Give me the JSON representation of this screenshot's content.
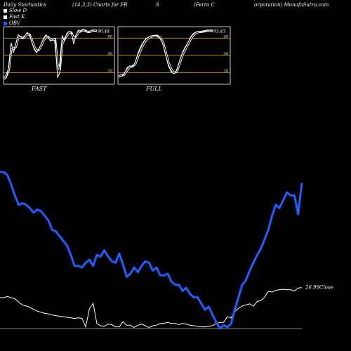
{
  "header": {
    "title": "Daily Stochastics",
    "params": "(14,3,3) Charts for FR",
    "ticker_fragment": "S",
    "company": "(Ferro  C",
    "source": "orporation) MunafaSutra.com"
  },
  "legend": [
    {
      "label": "Slow  D",
      "color": "#ffffff"
    },
    {
      "label": "Fast K",
      "color": "#ffffff"
    },
    {
      "label": "OBV",
      "color": "#1f5fff"
    }
  ],
  "colors": {
    "obv": "#1f5fff",
    "price": "#ffffff",
    "band": "#b8860b",
    "panel_border": "#cccccc"
  },
  "chart_data": [
    {
      "type": "line",
      "title": "FAST",
      "ylim": [
        0,
        100
      ],
      "yticks": [
        20,
        50,
        80
      ],
      "value_label": "90.44",
      "series": [
        {
          "name": "Fast K",
          "values": [
            8,
            12,
            30,
            72,
            55,
            70,
            86,
            83,
            79,
            85,
            90,
            86,
            72,
            60,
            55,
            62,
            70,
            80,
            86,
            82,
            75,
            78,
            80,
            12,
            20,
            85,
            76,
            88,
            92,
            90,
            70,
            85,
            94,
            92,
            95,
            93,
            90,
            92,
            94,
            92,
            93
          ]
        },
        {
          "name": "Slow  D",
          "values": [
            10,
            15,
            25,
            60,
            62,
            65,
            80,
            82,
            80,
            83,
            87,
            86,
            76,
            65,
            58,
            60,
            67,
            76,
            82,
            82,
            78,
            77,
            78,
            35,
            25,
            70,
            78,
            84,
            90,
            90,
            80,
            83,
            90,
            92,
            94,
            93,
            91,
            91,
            93,
            93,
            93
          ]
        }
      ]
    },
    {
      "type": "line",
      "title": "FULL",
      "ylim": [
        0,
        100
      ],
      "yticks": [
        20,
        50,
        80
      ],
      "value_label": "93.43",
      "series": [
        {
          "name": "Fast K",
          "values": [
            12,
            14,
            18,
            28,
            32,
            30,
            38,
            54,
            66,
            74,
            80,
            82,
            84,
            85,
            84,
            80,
            70,
            50,
            32,
            22,
            18,
            24,
            40,
            55,
            64,
            72,
            82,
            88,
            91,
            92,
            91,
            92,
            93,
            94,
            93
          ]
        },
        {
          "name": "Slow  D",
          "values": [
            14,
            15,
            17,
            24,
            30,
            31,
            35,
            48,
            60,
            70,
            77,
            81,
            83,
            84,
            84,
            81,
            73,
            56,
            38,
            26,
            20,
            22,
            35,
            50,
            60,
            69,
            78,
            85,
            89,
            91,
            91,
            92,
            93,
            93,
            93
          ]
        }
      ]
    },
    {
      "type": "line",
      "title": "",
      "price_label": "26.99",
      "price_suffix": "Close",
      "series": [
        {
          "name": "OBV",
          "values": [
            100,
            100,
            98,
            92,
            85,
            79,
            80,
            79,
            77,
            74,
            76,
            75,
            72,
            69,
            63,
            62,
            59,
            56,
            53,
            47,
            40,
            40,
            39,
            42,
            44,
            40,
            47,
            46,
            50,
            46,
            43,
            42,
            48,
            41,
            33,
            35,
            39,
            36,
            40,
            43,
            42,
            37,
            39,
            34,
            34,
            35,
            30,
            28,
            28,
            24,
            26,
            22,
            20,
            20,
            16,
            12,
            14,
            9,
            4,
            0,
            2,
            1,
            3,
            12,
            20,
            28,
            31,
            37,
            42,
            47,
            51,
            57,
            63,
            72,
            79,
            77,
            82,
            87,
            85,
            85,
            73,
            93
          ]
        },
        {
          "name": "Close",
          "values": [
            55,
            55,
            57,
            55,
            53,
            47,
            42,
            40,
            38,
            34,
            31,
            29,
            27,
            26,
            24,
            23,
            22,
            21,
            20,
            19,
            18,
            19,
            18,
            3,
            35,
            45,
            9,
            5,
            4,
            8,
            7,
            3,
            3,
            12,
            6,
            6,
            2,
            6,
            8,
            5,
            2,
            5,
            6,
            9,
            9,
            11,
            9,
            9,
            7,
            9,
            8,
            6,
            5,
            4,
            3,
            3,
            4,
            5,
            9,
            11,
            11,
            21,
            19,
            30,
            36,
            40,
            42,
            44,
            40,
            48,
            50,
            56,
            66,
            65,
            68,
            69,
            70,
            69,
            69,
            67,
            72,
            73
          ]
        }
      ]
    }
  ]
}
